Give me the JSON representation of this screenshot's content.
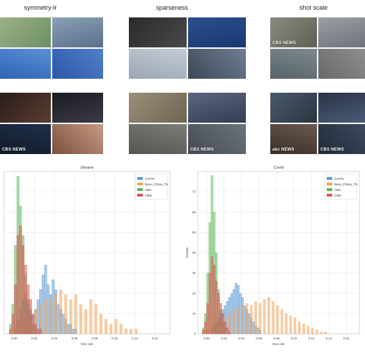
{
  "panels": [
    {
      "title": "symmetry-lr"
    },
    {
      "title": "sparseness"
    },
    {
      "title": "shot scale"
    }
  ],
  "thumbs": [
    [
      [
        "#9bb08a",
        "#6f8f63"
      ],
      [
        "#8aa1b8",
        "#5b6f88"
      ],
      [
        "#5b8fd6",
        "#2f63b5"
      ],
      [
        "#4f7fc8",
        "#2c58a8"
      ]
    ],
    [
      [
        "#2a2a2a",
        "#4a4a4a"
      ],
      [
        "#2b4f8f",
        "#193870"
      ],
      [
        "#c4ccd6",
        "#9aa6b3"
      ],
      [
        "#6e7e90",
        "#3c4858"
      ]
    ],
    [
      [
        "#8b8b80",
        "#5f5f55"
      ],
      [
        "#9aa0a6",
        "#6d7379"
      ],
      [
        "#7e8a8f",
        "#56626a"
      ],
      [
        "#8e8f8c",
        "#686a68"
      ]
    ],
    [
      [
        "#2a1d1a",
        "#5a3d30"
      ],
      [
        "#1b1b22",
        "#3b3b48"
      ],
      [
        "#20304a",
        "#101a2a"
      ],
      [
        "#c79a82",
        "#7a5040"
      ]
    ],
    [
      [
        "#9a8f7a",
        "#6e6452"
      ],
      [
        "#5b6680",
        "#343c52"
      ],
      [
        "#7d7d78",
        "#55554f"
      ],
      [
        "#6d737a",
        "#454b52"
      ]
    ],
    [
      [
        "#4a5a6a",
        "#2a3440"
      ],
      [
        "#2a3346",
        "#4b5b78"
      ],
      [
        "#6a5a50",
        "#3a2e28"
      ],
      [
        "#3c4a5e",
        "#202a38"
      ]
    ]
  ],
  "thumb_labels": {
    "cbs": "CBS NEWS",
    "abc": "abc NEWS"
  },
  "chart_data": [
    {
      "type": "histogram",
      "title": "Ukraine",
      "xlabel": "Mov rate",
      "ylabel": "",
      "xlim": [
        -0.01,
        0.155
      ],
      "ylim": [
        0,
        33
      ],
      "xticks": [
        "0.00",
        "0.02",
        "0.04",
        "0.06",
        "0.08",
        "0.10",
        "0.12",
        "0.14"
      ],
      "yticks": [],
      "grid": true,
      "legend": "top-right",
      "bin_width": 0.0025,
      "series": [
        {
          "name": "CGTN",
          "color": "#5b9bd5",
          "bin_starts": [
            0.0,
            0.0025,
            0.005,
            0.0075,
            0.01,
            0.0125,
            0.015,
            0.0175,
            0.02,
            0.0225,
            0.025,
            0.0275,
            0.03,
            0.0325,
            0.035,
            0.0375,
            0.04,
            0.0425,
            0.045,
            0.0475,
            0.05,
            0.0525,
            0.055,
            0.0575,
            0.06
          ],
          "counts": [
            1,
            3,
            5,
            7,
            8,
            6,
            5,
            4,
            5,
            7,
            9,
            12,
            14,
            10,
            8,
            11,
            9,
            6,
            5,
            4,
            3,
            2,
            2,
            1,
            1
          ]
        },
        {
          "name": "New_China_TV",
          "color": "#f4a259",
          "bin_starts": [
            0.0,
            0.005,
            0.01,
            0.015,
            0.02,
            0.025,
            0.03,
            0.035,
            0.04,
            0.045,
            0.05,
            0.055,
            0.06,
            0.065,
            0.07,
            0.075,
            0.08,
            0.085,
            0.09,
            0.095,
            0.1,
            0.105,
            0.11,
            0.115,
            0.12
          ],
          "counts": [
            1,
            2,
            3,
            4,
            5,
            6,
            7,
            7,
            8,
            9,
            8,
            7,
            8,
            6,
            5,
            7,
            6,
            4,
            3,
            2,
            3,
            2,
            1,
            1,
            1
          ]
        },
        {
          "name": "ABC",
          "color": "#5cb85c",
          "bin_starts": [
            -0.005,
            -0.0025,
            0.0,
            0.0025,
            0.005,
            0.0075,
            0.01,
            0.0125,
            0.015,
            0.0175,
            0.02
          ],
          "counts": [
            2,
            6,
            18,
            32,
            26,
            20,
            12,
            7,
            4,
            2,
            1
          ]
        },
        {
          "name": "CBS",
          "color": "#d9534f",
          "bin_starts": [
            -0.005,
            -0.0025,
            0.0,
            0.0025,
            0.005,
            0.0075,
            0.01,
            0.0125,
            0.015,
            0.0175,
            0.02,
            0.0225,
            0.025
          ],
          "counts": [
            1,
            4,
            10,
            20,
            22,
            18,
            14,
            10,
            7,
            4,
            2,
            1,
            1
          ]
        }
      ]
    },
    {
      "type": "histogram",
      "title": "Covid",
      "xlabel": "Mov rate",
      "ylabel": "Density",
      "xlim": [
        -0.01,
        0.175
      ],
      "ylim": [
        0,
        80
      ],
      "xticks": [
        "0.00",
        "0.02",
        "0.04",
        "0.06",
        "0.08",
        "0.10",
        "0.12",
        "0.14",
        "0.16"
      ],
      "yticks": [
        "0",
        "10",
        "20",
        "30",
        "40",
        "50",
        "60",
        "70"
      ],
      "grid": true,
      "legend": "top-right",
      "bin_width": 0.0025,
      "series": [
        {
          "name": "CGTN",
          "color": "#5b9bd5",
          "bin_starts": [
            0.005,
            0.0075,
            0.01,
            0.0125,
            0.015,
            0.0175,
            0.02,
            0.0225,
            0.025,
            0.0275,
            0.03,
            0.0325,
            0.035,
            0.0375,
            0.04,
            0.0425,
            0.045,
            0.0475,
            0.05,
            0.0525,
            0.055,
            0.0575,
            0.06
          ],
          "counts": [
            2,
            4,
            6,
            8,
            10,
            12,
            14,
            16,
            18,
            20,
            22,
            25,
            24,
            20,
            18,
            14,
            12,
            10,
            8,
            6,
            4,
            3,
            2
          ]
        },
        {
          "name": "New_China_TV",
          "color": "#f4a259",
          "bin_starts": [
            0.0,
            0.005,
            0.01,
            0.015,
            0.02,
            0.025,
            0.03,
            0.035,
            0.04,
            0.045,
            0.05,
            0.055,
            0.06,
            0.065,
            0.07,
            0.075,
            0.08,
            0.085,
            0.09,
            0.095,
            0.1,
            0.105,
            0.11,
            0.115,
            0.12,
            0.125,
            0.13,
            0.135
          ],
          "counts": [
            2,
            3,
            4,
            6,
            8,
            10,
            12,
            13,
            14,
            15,
            14,
            16,
            15,
            17,
            18,
            16,
            14,
            12,
            10,
            9,
            8,
            6,
            5,
            4,
            3,
            2,
            1,
            1
          ]
        },
        {
          "name": "ABC",
          "color": "#5cb85c",
          "bin_starts": [
            -0.005,
            -0.0025,
            0.0,
            0.0025,
            0.005,
            0.0075,
            0.01,
            0.0125,
            0.015,
            0.0175,
            0.02
          ],
          "counts": [
            3,
            10,
            30,
            55,
            78,
            60,
            40,
            22,
            12,
            6,
            3
          ]
        },
        {
          "name": "CBS",
          "color": "#d9534f",
          "bin_starts": [
            -0.005,
            -0.0025,
            0.0,
            0.0025,
            0.005,
            0.0075,
            0.01,
            0.0125,
            0.015,
            0.0175,
            0.02,
            0.0225,
            0.025
          ],
          "counts": [
            2,
            6,
            15,
            30,
            38,
            34,
            26,
            20,
            15,
            10,
            6,
            3,
            1
          ]
        }
      ]
    }
  ]
}
